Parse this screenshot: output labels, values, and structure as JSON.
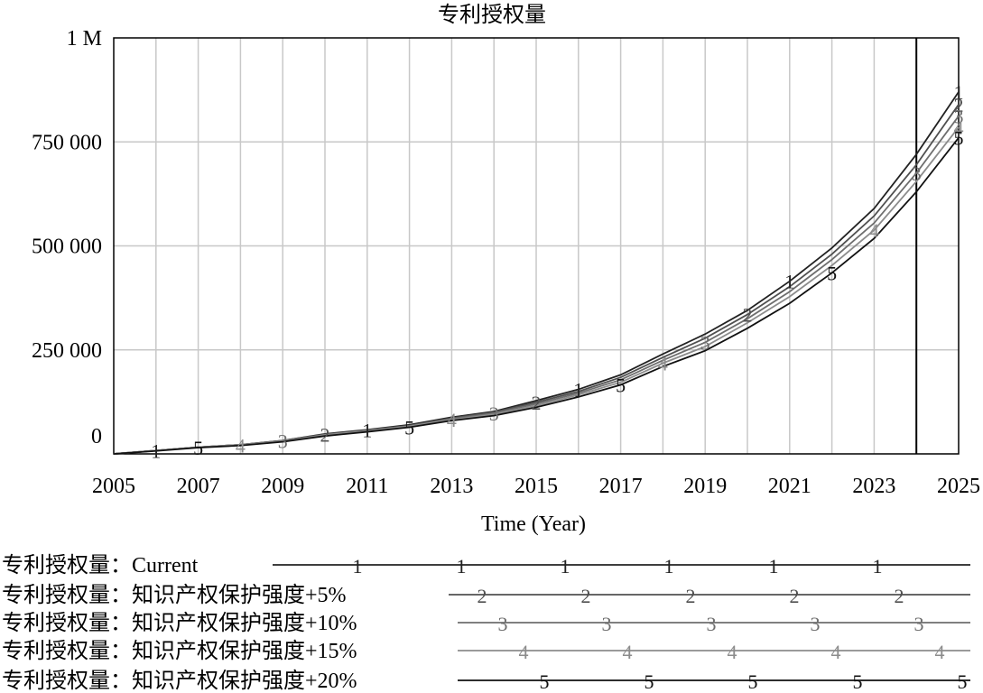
{
  "chart_data": {
    "type": "line",
    "title": "专利授权量",
    "xlabel": "Time (Year)",
    "ylabel": "",
    "xlim": [
      2005,
      2025
    ],
    "ylim": [
      0,
      1000000
    ],
    "x_ticks": [
      "2005",
      "2007",
      "2009",
      "2011",
      "2013",
      "2015",
      "2017",
      "2019",
      "2021",
      "2023",
      "2025"
    ],
    "y_ticks": [
      "0",
      "250 000",
      "500 000",
      "750 000",
      "1 M"
    ],
    "grid": true,
    "vline_x": 2024,
    "x": [
      2005,
      2006,
      2007,
      2008,
      2009,
      2010,
      2011,
      2012,
      2013,
      2014,
      2015,
      2016,
      2017,
      2018,
      2019,
      2020,
      2021,
      2022,
      2023,
      2024,
      2025
    ],
    "series": [
      {
        "name": "专利授权量：Current",
        "marker": "1",
        "color": "#222222",
        "values": [
          0,
          8000,
          16000,
          22000,
          32000,
          48000,
          58000,
          70000,
          88000,
          102000,
          128000,
          155000,
          190000,
          240000,
          288000,
          345000,
          415000,
          495000,
          590000,
          720000,
          870000
        ]
      },
      {
        "name": "专利授权量：知识产权保护强度+5%",
        "marker": "2",
        "color": "#505050",
        "values": [
          0,
          8000,
          16000,
          22000,
          32000,
          47000,
          57000,
          68000,
          86000,
          100000,
          124000,
          150000,
          184000,
          232000,
          278000,
          335000,
          402000,
          480000,
          572000,
          695000,
          840000
        ]
      },
      {
        "name": "专利授权量：知识产权保护强度+10%",
        "marker": "3",
        "color": "#6e6e6e",
        "values": [
          0,
          8000,
          16000,
          22000,
          31000,
          46000,
          56000,
          67000,
          84000,
          98000,
          120000,
          146000,
          178000,
          225000,
          268000,
          325000,
          390000,
          467000,
          555000,
          675000,
          812000
        ]
      },
      {
        "name": "专利授权量：知识产权保护强度+15%",
        "marker": "4",
        "color": "#8c8c8c",
        "values": [
          0,
          8000,
          16000,
          21000,
          30000,
          45000,
          55000,
          66000,
          82000,
          95000,
          116000,
          142000,
          172000,
          218000,
          258000,
          315000,
          378000,
          453000,
          538000,
          655000,
          785000
        ]
      },
      {
        "name": "专利授权量：知识产权保护强度+20%",
        "marker": "5",
        "color": "#111111",
        "values": [
          0,
          7000,
          15000,
          20000,
          29000,
          43000,
          53000,
          64000,
          80000,
          92000,
          112000,
          137000,
          166000,
          210000,
          248000,
          302000,
          362000,
          435000,
          518000,
          630000,
          760000
        ]
      }
    ]
  }
}
